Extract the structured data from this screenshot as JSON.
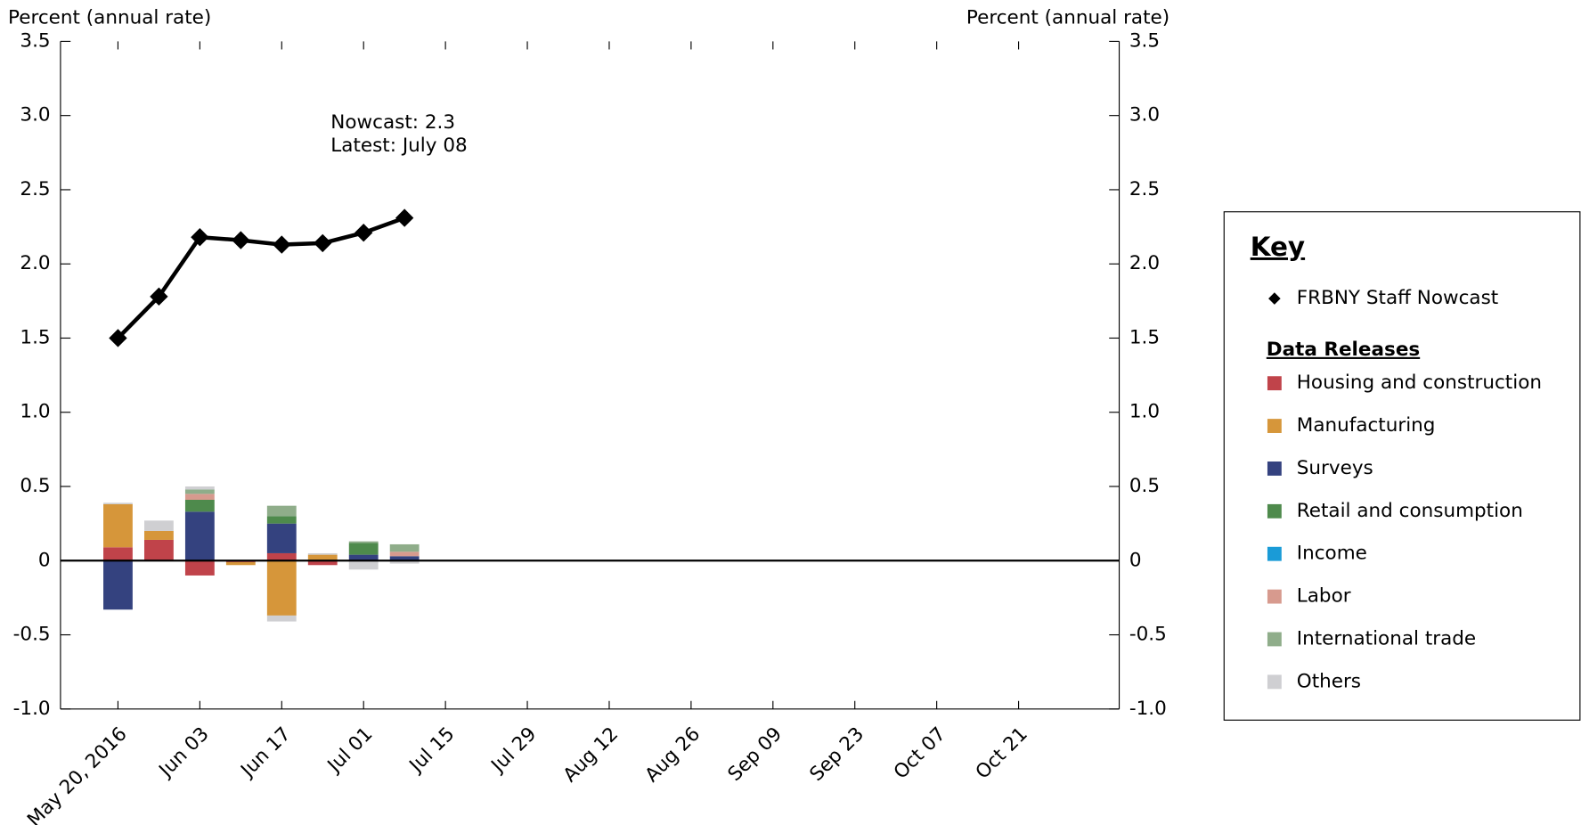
{
  "chart_data": {
    "type": "bar",
    "stacked": true,
    "y_label": "Percent (annual rate)",
    "y2_label": "Percent (annual rate)",
    "annotations": [
      "Nowcast:  2.3",
      "Latest: July 08"
    ],
    "legend_title": "Key",
    "legend_group_title": "Data Releases",
    "categories": [
      "May 20, 2016",
      null,
      "Jun 03",
      null,
      "Jun 17",
      null,
      "Jul 01",
      null,
      "Jul 15",
      null,
      "Jul 29",
      null,
      "Aug 12",
      null,
      "Aug 26",
      null,
      "Sep 09",
      null,
      "Sep 23",
      null,
      "Oct 07",
      null,
      "Oct 21",
      null
    ],
    "line_series": {
      "name": "FRBNY Staff Nowcast",
      "color": "#000000",
      "values": [
        1.5,
        1.78,
        2.18,
        2.16,
        2.13,
        2.14,
        2.21,
        2.31,
        null,
        null,
        null,
        null,
        null,
        null,
        null,
        null,
        null,
        null,
        null,
        null,
        null,
        null,
        null,
        null
      ]
    },
    "series": [
      {
        "name": "Housing and construction",
        "color": "#c0434a",
        "values": [
          0.09,
          0.14,
          -0.1,
          -0.01,
          0.05,
          -0.03,
          null,
          null,
          null,
          null,
          null,
          null,
          null,
          null,
          null,
          null,
          null,
          null,
          null,
          null,
          null,
          null,
          null,
          null
        ]
      },
      {
        "name": "Manufacturing",
        "color": "#d6963a",
        "values": [
          0.29,
          0.06,
          null,
          -0.02,
          -0.37,
          0.04,
          null,
          null,
          null,
          null,
          null,
          null,
          null,
          null,
          null,
          null,
          null,
          null,
          null,
          null,
          null,
          null,
          null,
          null
        ]
      },
      {
        "name": "Surveys",
        "color": "#34427f",
        "values": [
          -0.33,
          null,
          0.33,
          null,
          0.2,
          null,
          0.04,
          0.03,
          null,
          null,
          null,
          null,
          null,
          null,
          null,
          null,
          null,
          null,
          null,
          null,
          null,
          null,
          null,
          null
        ]
      },
      {
        "name": "Retail and consumption",
        "color": "#4e8a4c",
        "values": [
          null,
          null,
          0.08,
          null,
          0.05,
          null,
          0.08,
          null,
          null,
          null,
          null,
          null,
          null,
          null,
          null,
          null,
          null,
          null,
          null,
          null,
          null,
          null,
          null,
          null
        ]
      },
      {
        "name": "Income",
        "color": "#1a9bd7",
        "values": [
          null,
          null,
          null,
          null,
          null,
          null,
          null,
          null,
          null,
          null,
          null,
          null,
          null,
          null,
          null,
          null,
          null,
          null,
          null,
          null,
          null,
          null,
          null,
          null
        ]
      },
      {
        "name": "Labor",
        "color": "#d79a8e",
        "values": [
          null,
          null,
          0.04,
          null,
          null,
          null,
          null,
          0.03,
          null,
          null,
          null,
          null,
          null,
          null,
          null,
          null,
          null,
          null,
          null,
          null,
          null,
          null,
          null,
          null
        ]
      },
      {
        "name": "International trade",
        "color": "#8fad8a",
        "values": [
          null,
          null,
          0.03,
          null,
          0.07,
          null,
          0.01,
          0.05,
          null,
          null,
          null,
          null,
          null,
          null,
          null,
          null,
          null,
          null,
          null,
          null,
          null,
          null,
          null,
          null
        ]
      },
      {
        "name": "Others",
        "color": "#cfcfd2",
        "values": [
          0.01,
          0.07,
          0.02,
          null,
          -0.04,
          0.01,
          -0.06,
          -0.02,
          null,
          null,
          null,
          null,
          null,
          null,
          null,
          null,
          null,
          null,
          null,
          null,
          null,
          null,
          null,
          null
        ]
      }
    ],
    "ylim": [
      -1,
      3.5
    ],
    "yticks": [
      {
        "value": -1,
        "label": "-1.0"
      },
      -0.5,
      0,
      0.5,
      {
        "value": 1,
        "label": "1.0"
      },
      1.5,
      {
        "value": 2,
        "label": "2.0"
      },
      2.5,
      {
        "value": 3,
        "label": "3.0"
      },
      3.5
    ],
    "y2lim": [
      -1,
      3.5
    ],
    "y2ticks": [
      {
        "value": -1,
        "label": "-1.0"
      },
      -0.5,
      0,
      0.5,
      {
        "value": 1,
        "label": "1.0"
      },
      1.5,
      {
        "value": 2,
        "label": "2.0"
      },
      2.5,
      {
        "value": 3,
        "label": "3.0"
      },
      3.5
    ]
  }
}
